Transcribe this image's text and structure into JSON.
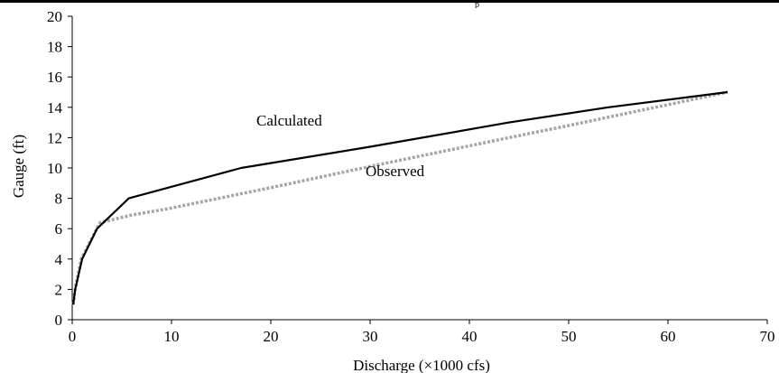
{
  "top_fragment": "p",
  "chart_data": {
    "type": "line",
    "title": "",
    "xlabel": "Discharge (×1000 cfs)",
    "ylabel": "Gauge (ft)",
    "xlim": [
      0,
      70
    ],
    "ylim": [
      0,
      20
    ],
    "xticks": [
      0,
      10,
      20,
      30,
      40,
      50,
      60,
      70
    ],
    "yticks": [
      0,
      2,
      4,
      6,
      8,
      10,
      12,
      14,
      16,
      18,
      20
    ],
    "grid": false,
    "legend": "none (series labeled inline)",
    "series": [
      {
        "name": "Calculated",
        "color": "#000000",
        "style": "solid",
        "x": [
          0.1,
          0.3,
          1.0,
          2.5,
          5.7,
          17.0,
          30.0,
          44.0,
          54.0,
          66.0
        ],
        "y": [
          1.0,
          2.0,
          4.0,
          6.0,
          8.0,
          10.0,
          11.4,
          13.0,
          14.0,
          15.0
        ]
      },
      {
        "name": "Observed",
        "color": "#a6a6a6",
        "style": "dotted",
        "x": [
          0.1,
          0.3,
          0.9,
          2.8,
          6.0,
          9.5,
          14.0,
          20.0,
          30.0,
          44.0,
          50.0,
          58.0,
          66.0
        ],
        "y": [
          1.0,
          2.0,
          4.0,
          6.4,
          6.9,
          7.3,
          7.9,
          8.7,
          10.1,
          12.0,
          12.8,
          13.9,
          15.0
        ]
      }
    ]
  }
}
